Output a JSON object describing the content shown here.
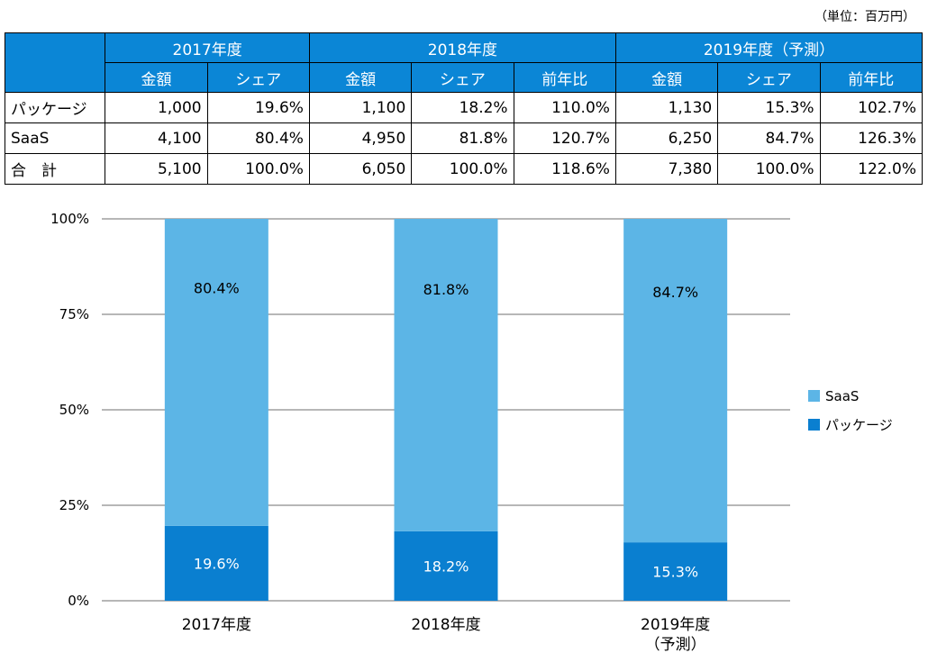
{
  "unit_label": "（単位：百万円）",
  "table": {
    "years": [
      "2017年度",
      "2018年度",
      "2019年度（予測）"
    ],
    "subheaders": [
      "金額",
      "シェア",
      "金額",
      "シェア",
      "前年比",
      "金額",
      "シェア",
      "前年比"
    ],
    "rows": [
      {
        "label": "パッケージ",
        "cells": [
          "1,000",
          "19.6%",
          "1,100",
          "18.2%",
          "110.0%",
          "1,130",
          "15.3%",
          "102.7%"
        ]
      },
      {
        "label": "SaaS",
        "cells": [
          "4,100",
          "80.4%",
          "4,950",
          "81.8%",
          "120.7%",
          "6,250",
          "84.7%",
          "126.3%"
        ]
      },
      {
        "label": "合　計",
        "cells": [
          "5,100",
          "100.0%",
          "6,050",
          "100.0%",
          "118.6%",
          "7,380",
          "100.0%",
          "122.0%"
        ]
      }
    ]
  },
  "chart_data": {
    "type": "bar",
    "stacked": "percent",
    "categories": [
      [
        "2017年度"
      ],
      [
        "2018年度"
      ],
      [
        "2019年度",
        "（予測）"
      ]
    ],
    "series": [
      {
        "name": "パッケージ",
        "values": [
          19.6,
          18.2,
          15.3
        ],
        "labels": [
          "19.6%",
          "18.2%",
          "15.3%"
        ],
        "color": "#0a7fd0"
      },
      {
        "name": "SaaS",
        "values": [
          80.4,
          81.8,
          84.7
        ],
        "labels": [
          "80.4%",
          "81.8%",
          "84.7%"
        ],
        "color": "#5cb5e6"
      }
    ],
    "yticks": [
      "0%",
      "25%",
      "50%",
      "75%",
      "100%"
    ],
    "ylim": [
      0,
      100
    ],
    "grid": true,
    "legend": {
      "position": "right",
      "order": [
        "SaaS",
        "パッケージ"
      ]
    }
  }
}
